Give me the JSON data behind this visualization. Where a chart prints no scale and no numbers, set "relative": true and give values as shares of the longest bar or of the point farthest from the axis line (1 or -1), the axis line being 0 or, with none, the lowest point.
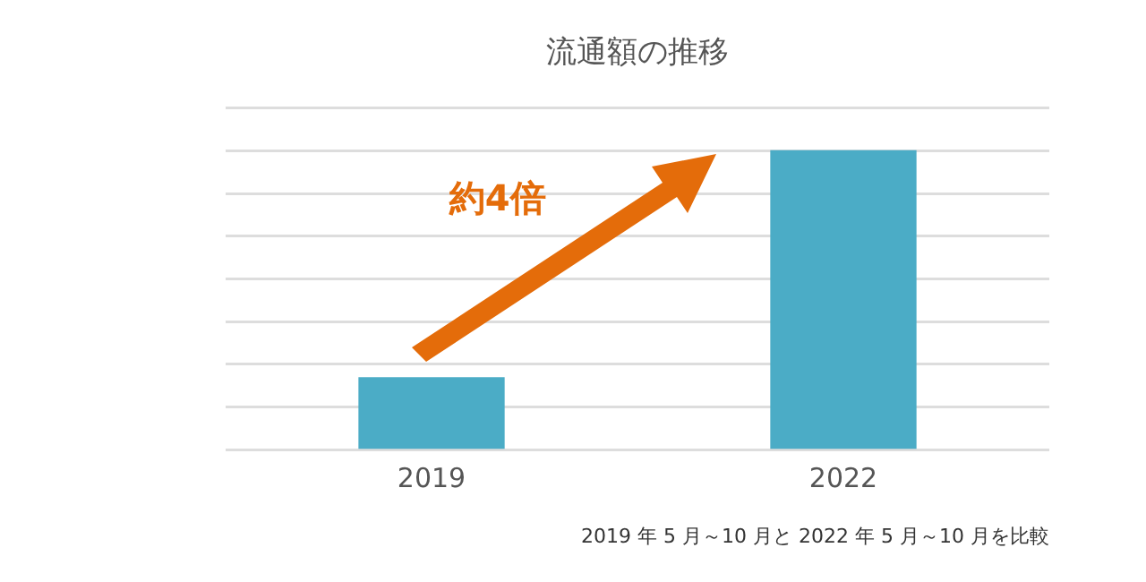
{
  "chart_data": {
    "type": "bar",
    "title": "流通額の推移",
    "categories": [
      "2019",
      "2022"
    ],
    "values": [
      0.24,
      1
    ],
    "color": "#4bacc6",
    "relative": true,
    "grid": "y",
    "annotations": [
      "約4倍",
      "2019 年 5 月～10 月と 2022 年 5 月～10 月を比較"
    ]
  }
}
